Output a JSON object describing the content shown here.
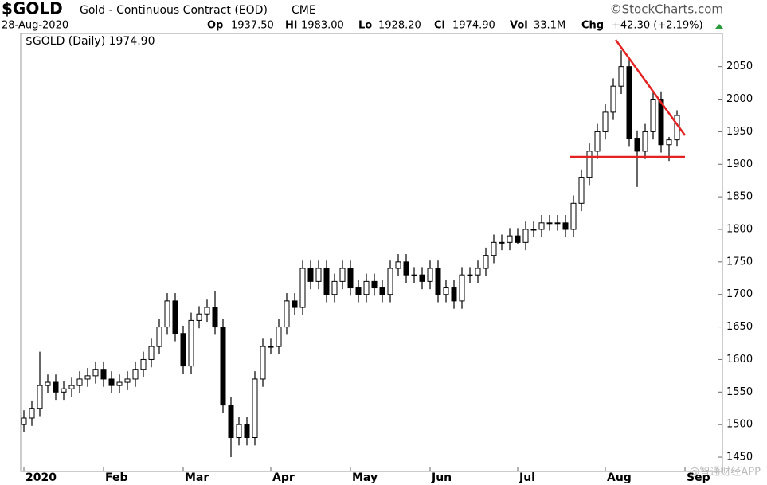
{
  "header": {
    "symbol": "$GOLD",
    "name": "Gold - Continuous Contract (EOD)",
    "exchange": "CME",
    "source": "©StockCharts.com",
    "date": "28-Aug-2020",
    "stats": [
      {
        "label": "Op",
        "value": "1937.50"
      },
      {
        "label": "Hi",
        "value": "1983.00"
      },
      {
        "label": "Lo",
        "value": "1928.20"
      },
      {
        "label": "Cl",
        "value": "1974.90"
      },
      {
        "label": "Vol",
        "value": "33.1M"
      },
      {
        "label": "Chg",
        "value": "+42.30 (+2.19%)"
      }
    ]
  },
  "chart_data": {
    "type": "candlestick",
    "legend": "$GOLD (Daily) 1974.90",
    "watermark": "@智通财经APP",
    "color": "#000000",
    "trendline_color": "#e32222",
    "categories": [
      "2020",
      null,
      null,
      null,
      null,
      null,
      null,
      null,
      null,
      null,
      "Feb",
      null,
      null,
      null,
      null,
      null,
      null,
      null,
      null,
      null,
      "Mar",
      null,
      null,
      null,
      null,
      null,
      null,
      null,
      null,
      null,
      null,
      "Apr",
      null,
      null,
      null,
      null,
      null,
      null,
      null,
      null,
      null,
      "May",
      null,
      null,
      null,
      null,
      null,
      null,
      null,
      null,
      null,
      "Jun",
      null,
      null,
      null,
      null,
      null,
      null,
      null,
      null,
      null,
      null,
      "Jul",
      null,
      null,
      null,
      null,
      null,
      null,
      null,
      null,
      null,
      null,
      "Aug",
      null,
      null,
      null,
      null,
      null,
      null,
      null,
      null,
      null,
      "Sep"
    ],
    "open": [
      1500,
      1510,
      1525,
      1560,
      1565,
      1550,
      1555,
      1560,
      1570,
      1575,
      1585,
      1570,
      1560,
      1565,
      1570,
      1585,
      1600,
      1620,
      1650,
      1690,
      1640,
      1590,
      1660,
      1670,
      1680,
      1650,
      1530,
      1480,
      1500,
      1480,
      1570,
      1620,
      1620,
      1650,
      1690,
      1680,
      1740,
      1720,
      1740,
      1700,
      1720,
      1740,
      1710,
      1700,
      1720,
      1710,
      1700,
      1740,
      1750,
      1730,
      1730,
      1720,
      1740,
      1700,
      1710,
      1690,
      1730,
      1730,
      1740,
      1760,
      1780,
      1780,
      1790,
      1780,
      1800,
      1800,
      1810,
      1810,
      1810,
      1800,
      1840,
      1880,
      1920,
      1950,
      1980,
      2020,
      2050,
      1940,
      1920,
      1950,
      2000,
      1930,
      1937.5,
      null
    ],
    "high": [
      1522,
      1537,
      1612,
      1577,
      1577,
      1567,
      1572,
      1582,
      1587,
      1597,
      1597,
      1582,
      1577,
      1582,
      1597,
      1612,
      1632,
      1662,
      1702,
      1702,
      1652,
      1672,
      1682,
      1692,
      1705,
      1662,
      1542,
      1512,
      1512,
      1582,
      1632,
      1632,
      1662,
      1702,
      1702,
      1752,
      1752,
      1752,
      1752,
      1732,
      1752,
      1752,
      1722,
      1732,
      1732,
      1722,
      1752,
      1762,
      1762,
      1742,
      1742,
      1752,
      1752,
      1722,
      1722,
      1742,
      1742,
      1752,
      1772,
      1792,
      1792,
      1802,
      1802,
      1812,
      1812,
      1822,
      1822,
      1822,
      1822,
      1852,
      1892,
      1932,
      1962,
      1992,
      2032,
      2075,
      2062,
      1952,
      1962,
      2012,
      2012,
      1942,
      1983,
      null
    ],
    "low": [
      1488,
      1498,
      1513,
      1548,
      1538,
      1538,
      1543,
      1548,
      1558,
      1563,
      1558,
      1548,
      1548,
      1553,
      1558,
      1573,
      1588,
      1608,
      1638,
      1628,
      1578,
      1578,
      1648,
      1658,
      1638,
      1518,
      1450,
      1468,
      1468,
      1468,
      1558,
      1608,
      1608,
      1638,
      1668,
      1668,
      1708,
      1708,
      1688,
      1688,
      1708,
      1698,
      1688,
      1688,
      1698,
      1688,
      1688,
      1728,
      1718,
      1718,
      1708,
      1708,
      1688,
      1688,
      1678,
      1678,
      1718,
      1718,
      1728,
      1748,
      1768,
      1768,
      1778,
      1768,
      1788,
      1788,
      1798,
      1798,
      1788,
      1788,
      1828,
      1868,
      1908,
      1938,
      1968,
      2008,
      1928,
      1865,
      1908,
      1938,
      1918,
      1905,
      1928.2,
      null
    ],
    "close": [
      1510,
      1525,
      1560,
      1565,
      1550,
      1555,
      1560,
      1570,
      1575,
      1585,
      1570,
      1560,
      1565,
      1570,
      1585,
      1600,
      1620,
      1650,
      1690,
      1640,
      1590,
      1660,
      1670,
      1680,
      1650,
      1530,
      1480,
      1500,
      1480,
      1570,
      1620,
      1620,
      1650,
      1690,
      1680,
      1740,
      1720,
      1740,
      1700,
      1720,
      1740,
      1710,
      1700,
      1720,
      1710,
      1700,
      1740,
      1750,
      1730,
      1730,
      1720,
      1740,
      1700,
      1710,
      1690,
      1730,
      1730,
      1740,
      1760,
      1780,
      1780,
      1790,
      1780,
      1800,
      1800,
      1810,
      1810,
      1810,
      1800,
      1840,
      1880,
      1920,
      1950,
      1980,
      2020,
      2050,
      1940,
      1920,
      1950,
      2000,
      1930,
      1937.5,
      1974.9,
      null
    ],
    "ylim": [
      1428,
      2101
    ],
    "yticks": [
      1450,
      1500,
      1550,
      1600,
      1650,
      1700,
      1750,
      1800,
      1850,
      1900,
      1950,
      2000,
      2050
    ]
  }
}
